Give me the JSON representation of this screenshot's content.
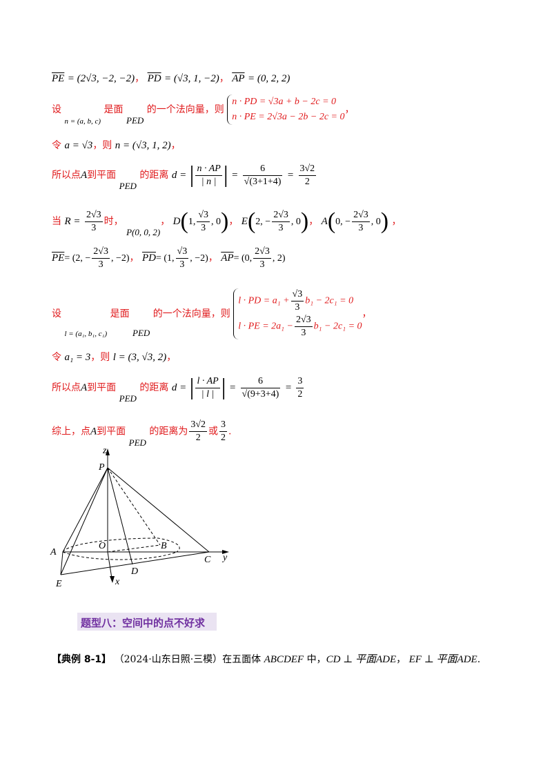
{
  "lines": {
    "l1": {
      "pe": "PE",
      "pe_val": "= (2√3, −2, −2)",
      "sep1": "，",
      "pd": "PD",
      "pd_val": "= (√3, 1, −2)",
      "sep2": "，",
      "ap": "AP",
      "ap_val": "= (0, 2, 2)"
    },
    "l2": {
      "t1": "设",
      "nvec": "n = (a, b, c)",
      "t2": "是面",
      "plane": "PED",
      "t3": "的一个法向量，则",
      "eq1": "n · PD = √3a + b − 2c = 0",
      "eq2": "n · PE = 2√3a − 2b − 2c = 0",
      "tail": "，"
    },
    "l3": {
      "t1": "令",
      "expr1": "a = √3",
      "t2": "，则",
      "expr2": "n = (√3, 1, 2)",
      "tail": "，"
    },
    "l4": {
      "t1": "所以点",
      "pt": "A",
      "t2": "到平面",
      "plane": "PED",
      "t3": "的距离",
      "d": "d =",
      "num": "n · AP",
      "den": "| n |",
      "eq": "=",
      "f_num": "6",
      "f_den": "√(3+1+4)",
      "eq2": "=",
      "r_num": "3√2",
      "r_den": "2"
    },
    "l5": {
      "t1": "当",
      "r": "R =",
      "r_num": "2√3",
      "r_den": "3",
      "t2": "时，",
      "p": "P(0, 0, 2)",
      "sep": "，",
      "d_pre": "D",
      "d_a": "1,",
      "d_num": "√3",
      "d_den": "3",
      "d_b": ", 0",
      "e_pre": "E",
      "e_a": "2, −",
      "e_num": "2√3",
      "e_den": "3",
      "e_b": ", 0",
      "a_pre": "A",
      "a_a": "0, −",
      "a_num": "2√3",
      "a_den": "3",
      "a_b": ", 0",
      "tail": "，"
    },
    "l6": {
      "pe": "PE",
      "pe_a": "= (2, −",
      "pe_num": "2√3",
      "pe_den": "3",
      "pe_b": ", −2)",
      "pd": "PD",
      "pd_a": "= (1,",
      "pd_num": "√3",
      "pd_den": "3",
      "pd_b": ", −2)",
      "ap": "AP",
      "ap_a": "= (0,",
      "ap_num": "2√3",
      "ap_den": "3",
      "ap_b": ", 2)",
      "sep": "，"
    },
    "l7": {
      "t1": "设",
      "lvec": "l = (a₁, b₁, c₁)",
      "t2": "是面",
      "plane": "PED",
      "t3": "的一个法向量，则",
      "eq1a": "l · PD = a₁ +",
      "eq1n": "√3",
      "eq1d": "3",
      "eq1b": "b₁ − 2c₁ = 0",
      "eq2a": "l · PE = 2a₁ −",
      "eq2n": "2√3",
      "eq2d": "3",
      "eq2b": "b₁ − 2c₁ = 0",
      "tail": "，"
    },
    "l8": {
      "t1": "令",
      "expr1": "a₁ = 3",
      "t2": "，则",
      "expr2": "l = (3, √3, 2)",
      "tail": "，"
    },
    "l9": {
      "t1": "所以点",
      "pt": "A",
      "t2": "到平面",
      "plane": "PED",
      "t3": "的距离",
      "d": "d =",
      "num": "l · AP",
      "den": "| l |",
      "eq": "=",
      "f_num": "6",
      "f_den": "√(9+3+4)",
      "eq2": "=",
      "r_num": "3",
      "r_den": "2"
    },
    "l10": {
      "t1": "综上，点",
      "pt": "A",
      "t2": "到平面",
      "plane": "PED",
      "t3": "的距离为",
      "r1_num": "3√2",
      "r1_den": "2",
      "t4": "或",
      "r2_num": "3",
      "r2_den": "2",
      "tail": "."
    }
  },
  "figure": {
    "labels": {
      "z": "z",
      "P": "P",
      "O": "O",
      "B": "B",
      "A": "A",
      "D": "D",
      "C": "C",
      "y": "y",
      "x": "x",
      "E": "E"
    }
  },
  "heading": "题型八：空间中的点不好求",
  "example": {
    "tag": "【典例 8-1】",
    "source": "（2024·山东日照·三模）",
    "text1": "在五面体",
    "solid": "ABCDEF",
    "text2": "中，",
    "c1": "CD ⊥ 平面ADE",
    "sep": "，",
    "c2": "EF ⊥ 平面ADE",
    "tail": "."
  },
  "colors": {
    "red": "#e0191b",
    "heading": "#7030a0",
    "heading_bg": "#eae3f2"
  }
}
